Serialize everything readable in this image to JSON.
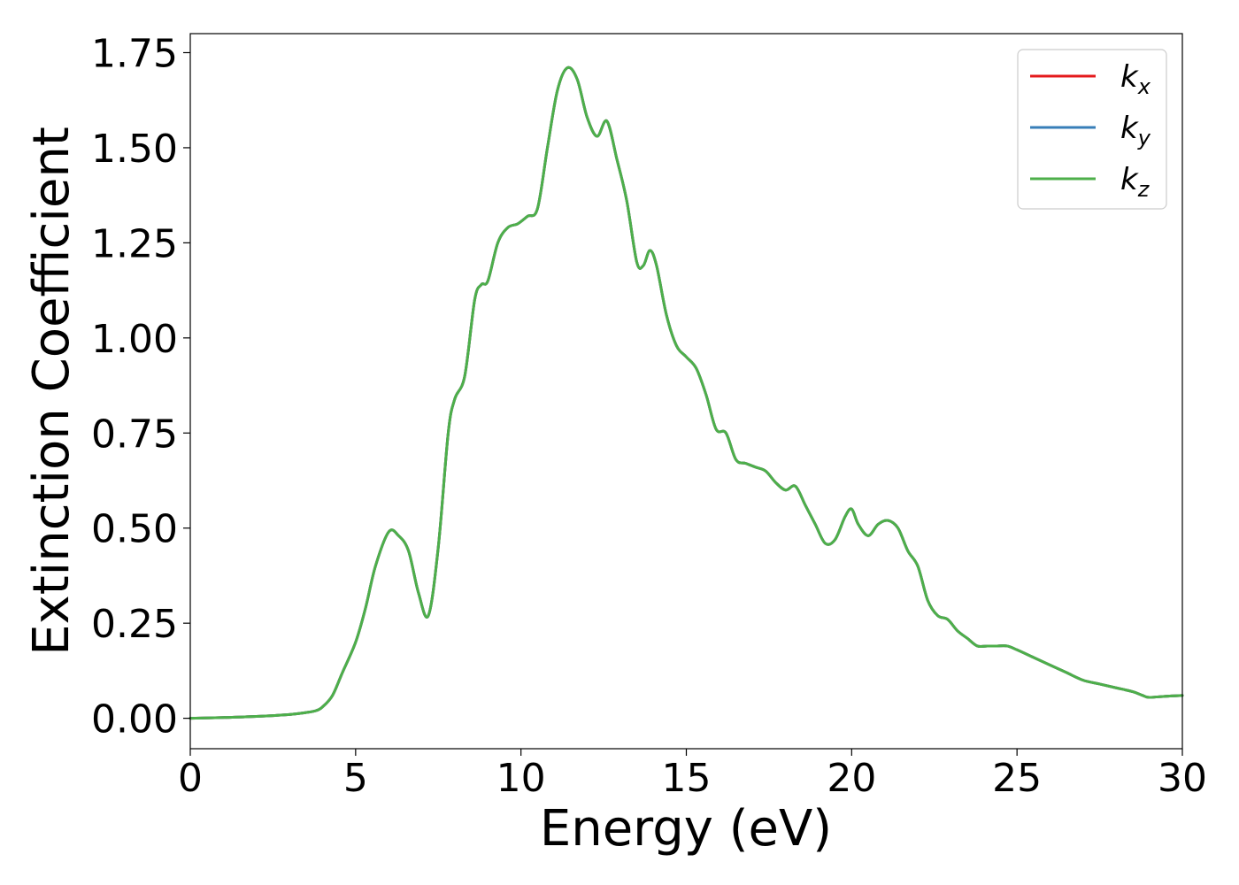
{
  "chart_data": {
    "type": "line",
    "title": "",
    "xlabel": "Energy (eV)",
    "ylabel": "Extinction Coefficient",
    "xlim": [
      0,
      30
    ],
    "ylim": [
      -0.08,
      1.8
    ],
    "xticks": [
      0,
      5,
      10,
      15,
      20,
      25,
      30
    ],
    "xtick_labels": [
      "0",
      "5",
      "10",
      "15",
      "20",
      "25",
      "30"
    ],
    "yticks": [
      0.0,
      0.25,
      0.5,
      0.75,
      1.0,
      1.25,
      1.5,
      1.75
    ],
    "ytick_labels": [
      "0.00",
      "0.25",
      "0.50",
      "0.75",
      "1.00",
      "1.25",
      "1.50",
      "1.75"
    ],
    "grid": false,
    "legend_position": "top-right",
    "x": [
      0,
      1,
      2,
      3,
      3.5,
      3.8,
      4.0,
      4.3,
      4.6,
      5.0,
      5.3,
      5.6,
      6.0,
      6.3,
      6.6,
      6.9,
      7.2,
      7.5,
      7.8,
      8.0,
      8.3,
      8.6,
      8.8,
      9.0,
      9.3,
      9.6,
      9.9,
      10.2,
      10.5,
      10.8,
      11.1,
      11.4,
      11.7,
      12.0,
      12.3,
      12.6,
      12.9,
      13.2,
      13.5,
      13.7,
      13.9,
      14.1,
      14.4,
      14.7,
      15.0,
      15.3,
      15.6,
      15.9,
      16.2,
      16.5,
      16.8,
      17.1,
      17.4,
      17.7,
      18.0,
      18.3,
      18.6,
      18.9,
      19.2,
      19.5,
      19.8,
      20.0,
      20.2,
      20.5,
      20.8,
      21.1,
      21.4,
      21.7,
      22.0,
      22.3,
      22.6,
      22.9,
      23.2,
      23.5,
      23.8,
      24.1,
      24.4,
      24.7,
      25.0,
      25.5,
      26.0,
      26.5,
      27.0,
      27.5,
      28.0,
      28.5,
      28.8,
      29.0,
      29.5,
      30.0
    ],
    "series": [
      {
        "name": "kx",
        "label_main": "k",
        "label_sub": "x",
        "color": "#e41a1c",
        "y": [
          0.0,
          0.002,
          0.005,
          0.01,
          0.015,
          0.02,
          0.03,
          0.06,
          0.12,
          0.2,
          0.29,
          0.4,
          0.49,
          0.48,
          0.44,
          0.33,
          0.27,
          0.45,
          0.75,
          0.84,
          0.9,
          1.1,
          1.14,
          1.15,
          1.25,
          1.29,
          1.3,
          1.32,
          1.34,
          1.5,
          1.65,
          1.71,
          1.68,
          1.58,
          1.53,
          1.57,
          1.47,
          1.36,
          1.2,
          1.19,
          1.23,
          1.19,
          1.06,
          0.98,
          0.95,
          0.92,
          0.85,
          0.76,
          0.75,
          0.68,
          0.67,
          0.66,
          0.65,
          0.62,
          0.6,
          0.61,
          0.56,
          0.51,
          0.46,
          0.47,
          0.53,
          0.55,
          0.51,
          0.48,
          0.51,
          0.52,
          0.5,
          0.44,
          0.4,
          0.31,
          0.27,
          0.26,
          0.23,
          0.21,
          0.19,
          0.19,
          0.19,
          0.19,
          0.18,
          0.16,
          0.14,
          0.12,
          0.1,
          0.09,
          0.08,
          0.07,
          0.06,
          0.055,
          0.058,
          0.06
        ]
      },
      {
        "name": "ky",
        "label_main": "k",
        "label_sub": "y",
        "color": "#377eb8",
        "y": [
          0.0,
          0.002,
          0.005,
          0.01,
          0.015,
          0.02,
          0.03,
          0.06,
          0.12,
          0.2,
          0.29,
          0.4,
          0.49,
          0.48,
          0.44,
          0.33,
          0.27,
          0.45,
          0.75,
          0.84,
          0.9,
          1.1,
          1.14,
          1.15,
          1.25,
          1.29,
          1.3,
          1.32,
          1.34,
          1.5,
          1.65,
          1.71,
          1.68,
          1.58,
          1.53,
          1.57,
          1.47,
          1.36,
          1.2,
          1.19,
          1.23,
          1.19,
          1.06,
          0.98,
          0.95,
          0.92,
          0.85,
          0.76,
          0.75,
          0.68,
          0.67,
          0.66,
          0.65,
          0.62,
          0.6,
          0.61,
          0.56,
          0.51,
          0.46,
          0.47,
          0.53,
          0.55,
          0.51,
          0.48,
          0.51,
          0.52,
          0.5,
          0.44,
          0.4,
          0.31,
          0.27,
          0.26,
          0.23,
          0.21,
          0.19,
          0.19,
          0.19,
          0.19,
          0.18,
          0.16,
          0.14,
          0.12,
          0.1,
          0.09,
          0.08,
          0.07,
          0.06,
          0.055,
          0.058,
          0.06
        ]
      },
      {
        "name": "kz",
        "label_main": "k",
        "label_sub": "z",
        "color": "#4daf4a",
        "y": [
          0.0,
          0.002,
          0.005,
          0.01,
          0.015,
          0.02,
          0.03,
          0.06,
          0.12,
          0.2,
          0.29,
          0.4,
          0.49,
          0.48,
          0.44,
          0.33,
          0.27,
          0.45,
          0.75,
          0.84,
          0.9,
          1.1,
          1.14,
          1.15,
          1.25,
          1.29,
          1.3,
          1.32,
          1.34,
          1.5,
          1.65,
          1.71,
          1.68,
          1.58,
          1.53,
          1.57,
          1.47,
          1.36,
          1.2,
          1.19,
          1.23,
          1.19,
          1.06,
          0.98,
          0.95,
          0.92,
          0.85,
          0.76,
          0.75,
          0.68,
          0.67,
          0.66,
          0.65,
          0.62,
          0.6,
          0.61,
          0.56,
          0.51,
          0.46,
          0.47,
          0.53,
          0.55,
          0.51,
          0.48,
          0.51,
          0.52,
          0.5,
          0.44,
          0.4,
          0.31,
          0.27,
          0.26,
          0.23,
          0.21,
          0.19,
          0.19,
          0.19,
          0.19,
          0.18,
          0.16,
          0.14,
          0.12,
          0.1,
          0.09,
          0.08,
          0.07,
          0.06,
          0.055,
          0.058,
          0.06
        ]
      }
    ]
  }
}
